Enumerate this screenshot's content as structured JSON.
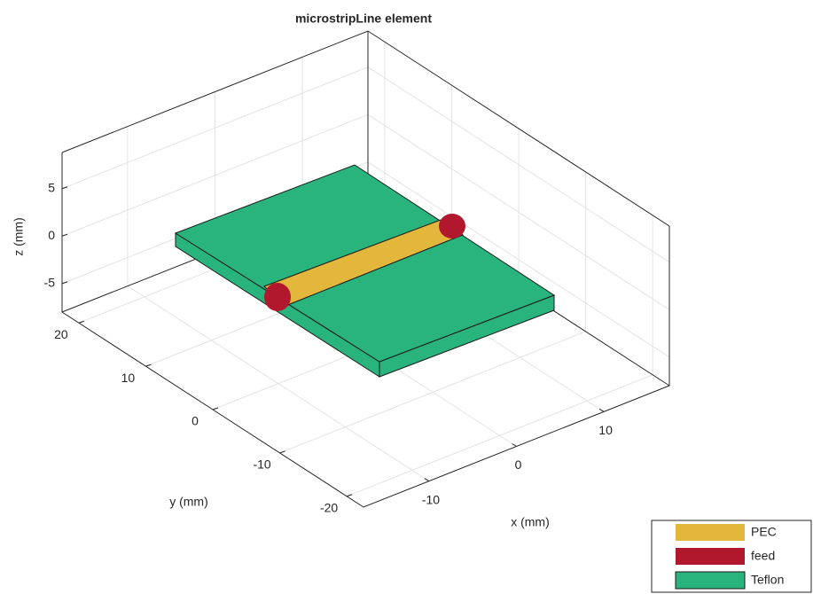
{
  "chart_data": {
    "type": "3d-geometry",
    "title": "microstripLine element",
    "x_label": "x (mm)",
    "y_label": "y (mm)",
    "z_label": "z (mm)",
    "xlim": [
      -17.5,
      17.5
    ],
    "ylim": [
      -22.5,
      22.5
    ],
    "zlim": [
      -8,
      8.8
    ],
    "xticks": [
      -10,
      0,
      10
    ],
    "yticks": [
      -20,
      -10,
      0,
      10,
      20
    ],
    "zticks": [
      -5,
      0,
      5
    ],
    "grid": true,
    "legend": {
      "position": "bottom-right",
      "entries": [
        {
          "name": "PEC",
          "color": "#e3b73b"
        },
        {
          "name": "feed",
          "color": "#b1182d"
        },
        {
          "name": "Teflon",
          "color": "#29b37d"
        }
      ]
    }
  }
}
